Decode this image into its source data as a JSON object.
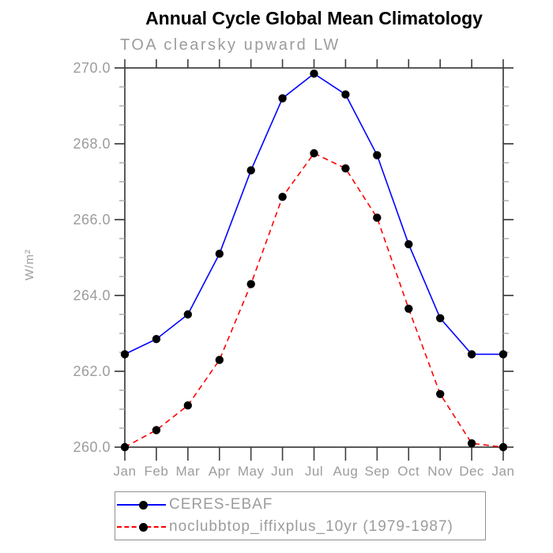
{
  "header": {
    "title": "Annual Cycle Global Mean Climatology",
    "subtitle": "TOA clearsky upward LW"
  },
  "chart_data": {
    "type": "line",
    "title": "Annual Cycle Global Mean Climatology",
    "subtitle": "TOA clearsky upward LW",
    "xlabel": "",
    "ylabel": "W/m²",
    "ylim": [
      260.0,
      270.0
    ],
    "ytick_major_interval": 2.0,
    "ytick_minor_interval": 0.5,
    "ytick_labels": [
      "260.0",
      "262.0",
      "264.0",
      "266.0",
      "268.0",
      "270.0"
    ],
    "grid": false,
    "legend_position": "bottom",
    "categories": [
      "Jan",
      "Feb",
      "Mar",
      "Apr",
      "May",
      "Jun",
      "Jul",
      "Aug",
      "Sep",
      "Oct",
      "Nov",
      "Dec",
      "Jan"
    ],
    "series": [
      {
        "name": "CERES-EBAF",
        "color": "#0000ff",
        "line_style": "solid",
        "marker": "filled-circle",
        "marker_color": "#000000",
        "values": [
          262.45,
          262.85,
          263.5,
          265.1,
          267.3,
          269.2,
          269.85,
          269.3,
          267.7,
          265.35,
          263.4,
          262.45,
          262.45
        ]
      },
      {
        "name": "noclubbtop_iffixplus_10yr (1979-1987)",
        "color": "#ff0000",
        "line_style": "dashed",
        "marker": "filled-circle",
        "marker_color": "#000000",
        "values": [
          260.0,
          260.45,
          261.1,
          262.3,
          264.3,
          266.6,
          267.75,
          267.35,
          266.05,
          263.65,
          261.4,
          260.1,
          260.0
        ]
      }
    ]
  },
  "colors": {
    "title": "#000000",
    "axis": "#3d3d3d",
    "major_tick": "#3d3d3d",
    "minor_tick": "#a8a8a8",
    "label_gray": "#9c9c9c",
    "legend_border": "#909090",
    "background": "#ffffff"
  }
}
